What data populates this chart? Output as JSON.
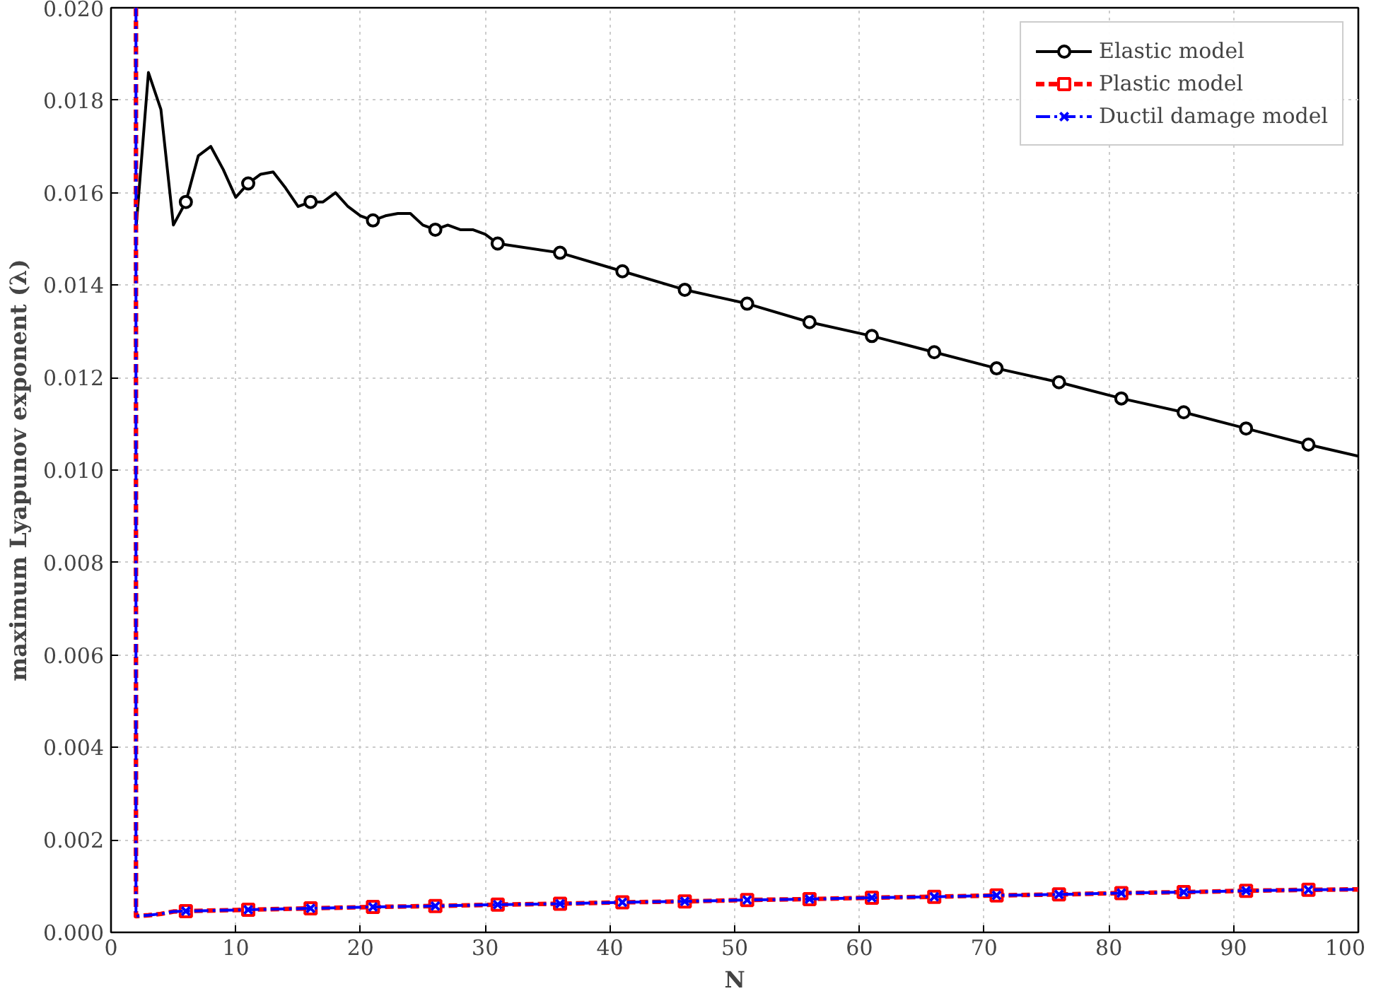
{
  "chart_data": {
    "type": "line",
    "xlabel": "N",
    "ylabel": "maximum Lyapunov exponent (λ)",
    "xlim": [
      0,
      100
    ],
    "ylim": [
      0,
      0.02
    ],
    "xticks": [
      0,
      10,
      20,
      30,
      40,
      50,
      60,
      70,
      80,
      90,
      100
    ],
    "yticks": [
      {
        "value": 0,
        "label": "0.000"
      },
      {
        "value": 0.002,
        "label": "0.002"
      },
      {
        "value": 0.004,
        "label": "0.004"
      },
      {
        "value": 0.006,
        "label": "0.006"
      },
      {
        "value": 0.008,
        "label": "0.008"
      },
      {
        "value": 0.01,
        "label": "0.010"
      },
      {
        "value": 0.012,
        "label": "0.012"
      },
      {
        "value": 0.014,
        "label": "0.014"
      },
      {
        "value": 0.016,
        "label": "0.016"
      },
      {
        "value": 0.018,
        "label": "0.018"
      },
      {
        "value": 0.02,
        "label": "0.020"
      }
    ],
    "grid": true,
    "legend": "top right",
    "series": [
      {
        "name": "Elastic model",
        "color": "#000000",
        "line_style": "solid",
        "marker": "none",
        "x": [
          2,
          3,
          4,
          5,
          6,
          7,
          8,
          9,
          10,
          11,
          12,
          13,
          14,
          15,
          16,
          17,
          18,
          19,
          20,
          21,
          22,
          23,
          24,
          25,
          26,
          27,
          28,
          29,
          30,
          31,
          36,
          41,
          46,
          51,
          56,
          61,
          66,
          71,
          76,
          81,
          86,
          91,
          96,
          100
        ],
        "values": [
          0.0152,
          0.0186,
          0.0178,
          0.0153,
          0.0158,
          0.0168,
          0.017,
          0.0165,
          0.0159,
          0.0162,
          0.0164,
          0.01645,
          0.0161,
          0.0157,
          0.0158,
          0.0158,
          0.016,
          0.0157,
          0.0155,
          0.0154,
          0.0155,
          0.01555,
          0.01555,
          0.0153,
          0.0152,
          0.0153,
          0.0152,
          0.0152,
          0.0151,
          0.0149,
          0.0147,
          0.0143,
          0.0139,
          0.0136,
          0.0132,
          0.0129,
          0.01255,
          0.0122,
          0.0119,
          0.01155,
          0.01125,
          0.0109,
          0.01055,
          0.0103
        ]
      },
      {
        "type": "scatter",
        "color": "#000000",
        "marker": "circle",
        "x": [
          6,
          11,
          16,
          21,
          26,
          31,
          36,
          41,
          46,
          51,
          56,
          61,
          66,
          71,
          76,
          81,
          86,
          91,
          96
        ],
        "values": [
          0.0158,
          0.0162,
          0.0158,
          0.0154,
          0.0152,
          0.0149,
          0.0147,
          0.0143,
          0.0139,
          0.0136,
          0.0132,
          0.0129,
          0.01255,
          0.0122,
          0.0119,
          0.01155,
          0.01125,
          0.0109,
          0.01055
        ]
      },
      {
        "name": "Plastic model",
        "color": "#ff0000",
        "line_style": "dashed",
        "marker": "none",
        "x": [
          2,
          2,
          3,
          4,
          5,
          6,
          11,
          16,
          21,
          26,
          31,
          36,
          41,
          46,
          51,
          56,
          61,
          66,
          71,
          76,
          81,
          86,
          91,
          96,
          100
        ],
        "values": [
          0.02,
          0.00035,
          0.00037,
          0.0004,
          0.00045,
          0.00046,
          0.00049,
          0.00052,
          0.00055,
          0.00057,
          0.0006,
          0.00062,
          0.00065,
          0.00067,
          0.0007,
          0.00072,
          0.00075,
          0.00077,
          0.0008,
          0.00082,
          0.00085,
          0.00087,
          0.0009,
          0.00092,
          0.00093
        ]
      },
      {
        "type": "scatter",
        "color": "#ff0000",
        "marker": "square",
        "x": [
          6,
          11,
          16,
          21,
          26,
          31,
          36,
          41,
          46,
          51,
          56,
          61,
          66,
          71,
          76,
          81,
          86,
          91,
          96
        ],
        "values": [
          0.00046,
          0.00049,
          0.00052,
          0.00055,
          0.00057,
          0.0006,
          0.00062,
          0.00065,
          0.00067,
          0.0007,
          0.00072,
          0.00075,
          0.00077,
          0.0008,
          0.00082,
          0.00085,
          0.00087,
          0.0009,
          0.00092
        ]
      },
      {
        "name": "Ductil damage model",
        "color": "#0000ff",
        "line_style": "dashdot",
        "marker": "none",
        "x": [
          2,
          2,
          3,
          4,
          5,
          6,
          11,
          16,
          21,
          26,
          31,
          36,
          41,
          46,
          51,
          56,
          61,
          66,
          71,
          76,
          81,
          86,
          91,
          96,
          100
        ],
        "values": [
          0.02,
          0.00035,
          0.00037,
          0.0004,
          0.00045,
          0.00046,
          0.00049,
          0.00052,
          0.00055,
          0.00057,
          0.0006,
          0.00062,
          0.00065,
          0.00067,
          0.0007,
          0.00072,
          0.00075,
          0.00077,
          0.0008,
          0.00082,
          0.00085,
          0.00087,
          0.0009,
          0.00092,
          0.00093
        ]
      },
      {
        "type": "scatter",
        "color": "#0000ff",
        "marker": "cross",
        "x": [
          6,
          11,
          16,
          21,
          26,
          31,
          36,
          41,
          46,
          51,
          56,
          61,
          66,
          71,
          76,
          81,
          86,
          91,
          96
        ],
        "values": [
          0.00046,
          0.00049,
          0.00052,
          0.00055,
          0.00057,
          0.0006,
          0.00062,
          0.00065,
          0.00067,
          0.0007,
          0.00072,
          0.00075,
          0.00077,
          0.0008,
          0.00082,
          0.00085,
          0.00087,
          0.0009,
          0.00092
        ]
      }
    ]
  }
}
